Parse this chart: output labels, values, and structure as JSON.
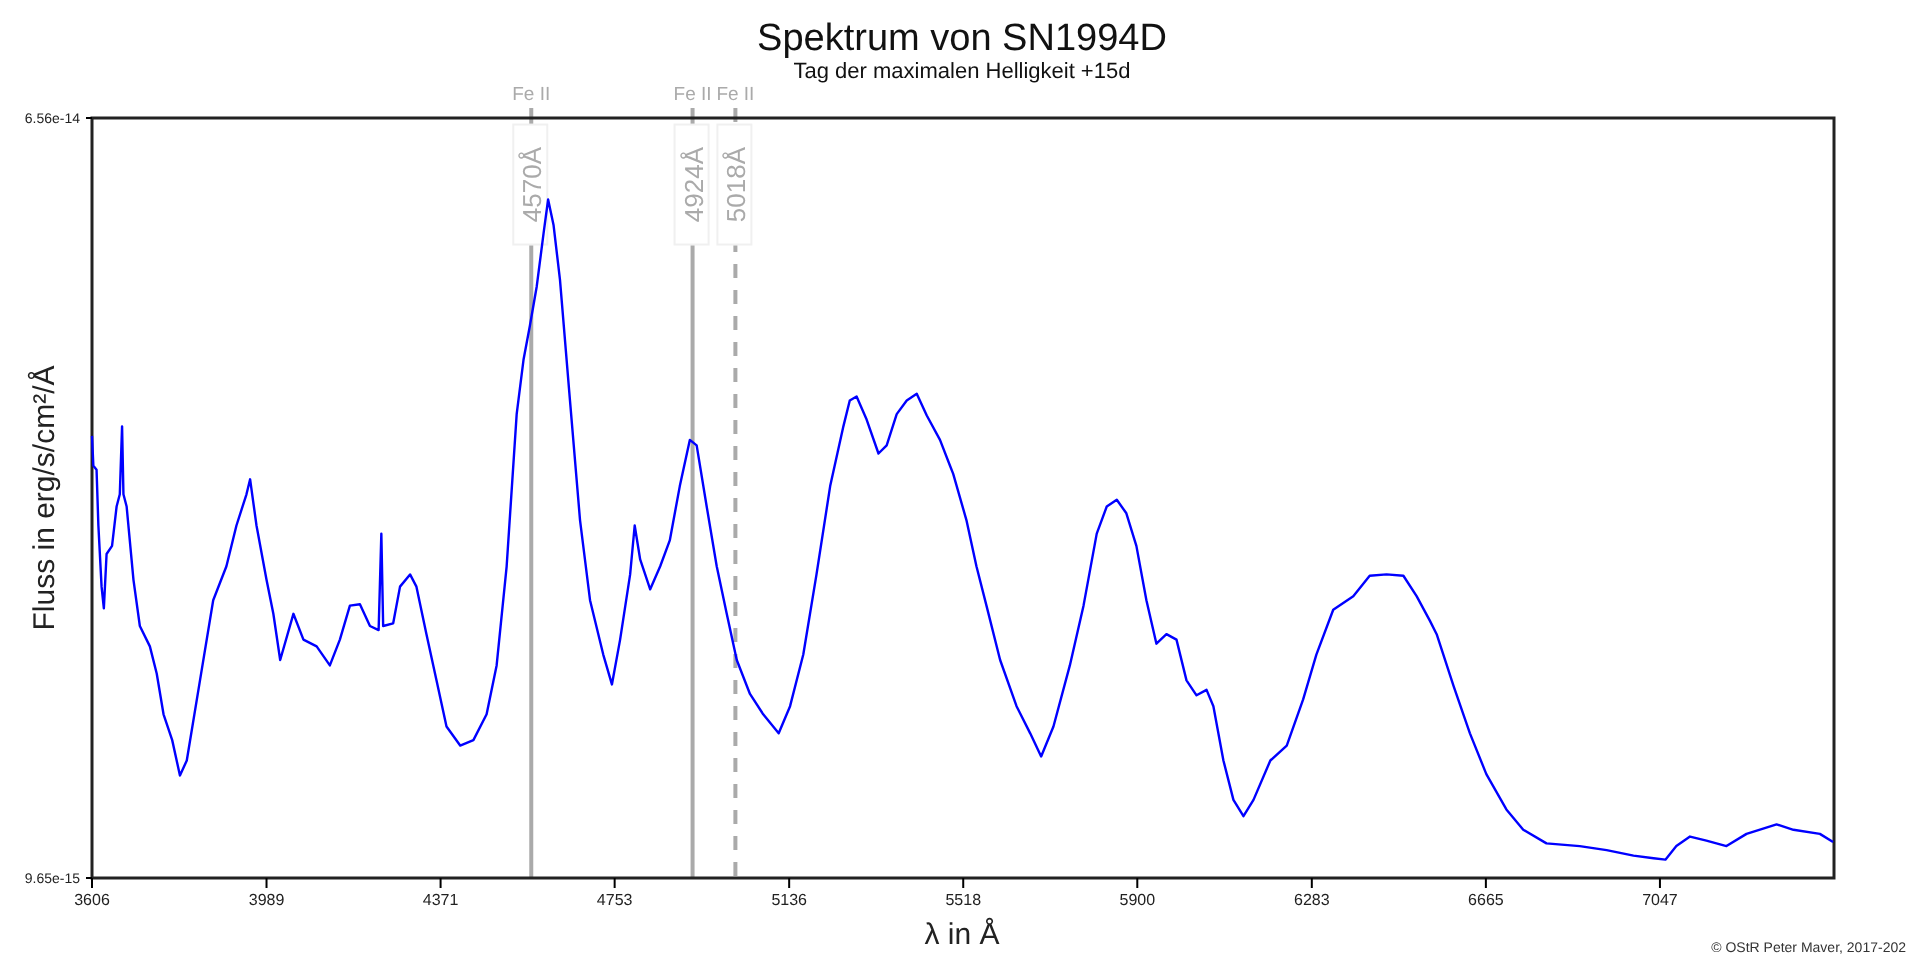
{
  "chart_data": {
    "type": "line",
    "title": "Spektrum von SN1994D",
    "subtitle": "Tag der maximalen Helligkeit +15d",
    "xlabel": "λ in Å",
    "ylabel": "Fluss in erg/s/cm²/Å",
    "xlim": [
      3606,
      7429
    ],
    "xticks": [
      3606,
      3989,
      4371,
      4753,
      5136,
      5518,
      5900,
      6283,
      6665,
      7047
    ],
    "ylim": [
      9.65e-15,
      6.56e-14
    ],
    "yticks": [
      9.65e-15,
      6.56e-14
    ],
    "ref_lines": [
      {
        "axis": "x",
        "value": 4570,
        "label": "Fe II",
        "color": "#aaaaaa",
        "line_style": "solid"
      },
      {
        "axis": "x",
        "value": 4924,
        "label": "Fe II",
        "color": "#aaaaaa",
        "line_style": "solid"
      },
      {
        "axis": "x",
        "value": 5018,
        "label": "Fe II",
        "color": "#aaaaaa",
        "line_style": "dashed"
      }
    ],
    "annotations": [
      {
        "text": "4570Å",
        "x": 4570,
        "y": 6.07e-14
      },
      {
        "text": "4924Å",
        "x": 4924,
        "y": 6.07e-14
      },
      {
        "text": "5018Å",
        "x": 5018,
        "y": 6.07e-14
      },
      "© OStR Peter Maver, 2017-202"
    ],
    "series": [
      {
        "color": "#0000ff",
        "x": [
          3606,
          3609,
          3616,
          3620,
          3627,
          3632,
          3638,
          3650,
          3660,
          3667,
          3672,
          3675,
          3682,
          3697,
          3711,
          3733,
          3748,
          3763,
          3782,
          3799,
          3814,
          3843,
          3872,
          3901,
          3923,
          3945,
          3953,
          3967,
          3989,
          4004,
          4019,
          4048,
          4070,
          4099,
          4128,
          4150,
          4172,
          4194,
          4216,
          4235,
          4241,
          4245,
          4267,
          4282,
          4304,
          4318,
          4340,
          4362,
          4384,
          4414,
          4443,
          4472,
          4494,
          4516,
          4538,
          4553,
          4567,
          4582,
          4597,
          4607,
          4619,
          4633,
          4655,
          4677,
          4699,
          4728,
          4747,
          4765,
          4787,
          4797,
          4809,
          4831,
          4853,
          4874,
          4896,
          4918,
          4933,
          4955,
          4977,
          4999,
          5021,
          5050,
          5079,
          5113,
          5138,
          5167,
          5196,
          5226,
          5255,
          5269,
          5284,
          5306,
          5332,
          5350,
          5372,
          5394,
          5416,
          5438,
          5467,
          5489,
          5496,
          5525,
          5547,
          5569,
          5599,
          5635,
          5665,
          5689,
          5716,
          5752,
          5782,
          5811,
          5833,
          5855,
          5876,
          5898,
          5920,
          5942,
          5964,
          5986,
          6008,
          6030,
          6052,
          6067,
          6089,
          6111,
          6133,
          6155,
          6192,
          6228,
          6264,
          6293,
          6330,
          6374,
          6410,
          6447,
          6484,
          6513,
          6542,
          6557,
          6594,
          6630,
          6666,
          6710,
          6747,
          6798,
          6871,
          6930,
          6989,
          7033,
          7059,
          7083,
          7113,
          7149,
          7193,
          7237,
          7303,
          7340,
          7398,
          7427
        ],
        "values": [
          4.22e-14,
          4e-14,
          3.97e-14,
          3.56e-14,
          3.11e-14,
          2.95e-14,
          3.35e-14,
          3.41e-14,
          3.7e-14,
          3.79e-14,
          4.29e-14,
          3.79e-14,
          3.7e-14,
          3.16e-14,
          2.82e-14,
          2.67e-14,
          2.47e-14,
          2.17e-14,
          1.98e-14,
          1.72e-14,
          1.83e-14,
          2.42e-14,
          3.01e-14,
          3.26e-14,
          3.56e-14,
          3.79e-14,
          3.9e-14,
          3.56e-14,
          3.16e-14,
          2.91e-14,
          2.57e-14,
          2.91e-14,
          2.72e-14,
          2.67e-14,
          2.53e-14,
          2.72e-14,
          2.97e-14,
          2.98e-14,
          2.82e-14,
          2.79e-14,
          3.5e-14,
          2.82e-14,
          2.84e-14,
          3.11e-14,
          3.2e-14,
          3.11e-14,
          2.76e-14,
          2.42e-14,
          2.08e-14,
          1.94e-14,
          1.98e-14,
          2.17e-14,
          2.53e-14,
          3.26e-14,
          4.38e-14,
          4.78e-14,
          5.03e-14,
          5.32e-14,
          5.71e-14,
          5.96e-14,
          5.77e-14,
          5.37e-14,
          4.48e-14,
          3.6e-14,
          3.01e-14,
          2.61e-14,
          2.39e-14,
          2.72e-14,
          3.2e-14,
          3.56e-14,
          3.31e-14,
          3.09e-14,
          3.26e-14,
          3.45e-14,
          3.85e-14,
          4.19e-14,
          4.15e-14,
          3.7e-14,
          3.26e-14,
          2.91e-14,
          2.57e-14,
          2.32e-14,
          2.17e-14,
          2.03e-14,
          2.23e-14,
          2.61e-14,
          3.2e-14,
          3.85e-14,
          4.29e-14,
          4.48e-14,
          4.51e-14,
          4.34e-14,
          4.09e-14,
          4.15e-14,
          4.38e-14,
          4.48e-14,
          4.53e-14,
          4.37e-14,
          4.19e-14,
          4e-14,
          3.94e-14,
          3.6e-14,
          3.26e-14,
          2.97e-14,
          2.57e-14,
          2.23e-14,
          2.03e-14,
          1.86e-14,
          2.08e-14,
          2.53e-14,
          2.97e-14,
          3.5e-14,
          3.7e-14,
          3.75e-14,
          3.65e-14,
          3.41e-14,
          3.01e-14,
          2.69e-14,
          2.76e-14,
          2.72e-14,
          2.42e-14,
          2.31e-14,
          2.35e-14,
          2.23e-14,
          1.83e-14,
          1.54e-14,
          1.42e-14,
          1.54e-14,
          1.83e-14,
          1.94e-14,
          2.28e-14,
          2.61e-14,
          2.94e-14,
          3.04e-14,
          3.19e-14,
          3.2e-14,
          3.19e-14,
          3.04e-14,
          2.86e-14,
          2.76e-14,
          2.38e-14,
          2.03e-14,
          1.73e-14,
          1.47e-14,
          1.32e-14,
          1.22e-14,
          1.2e-14,
          1.17e-14,
          1.13e-14,
          1.11e-14,
          1.1e-14,
          1.2e-14,
          1.27e-14,
          1.24e-14,
          1.2e-14,
          1.29e-14,
          1.36e-14,
          1.32e-14,
          1.29e-14,
          1.23e-14
        ]
      }
    ]
  }
}
